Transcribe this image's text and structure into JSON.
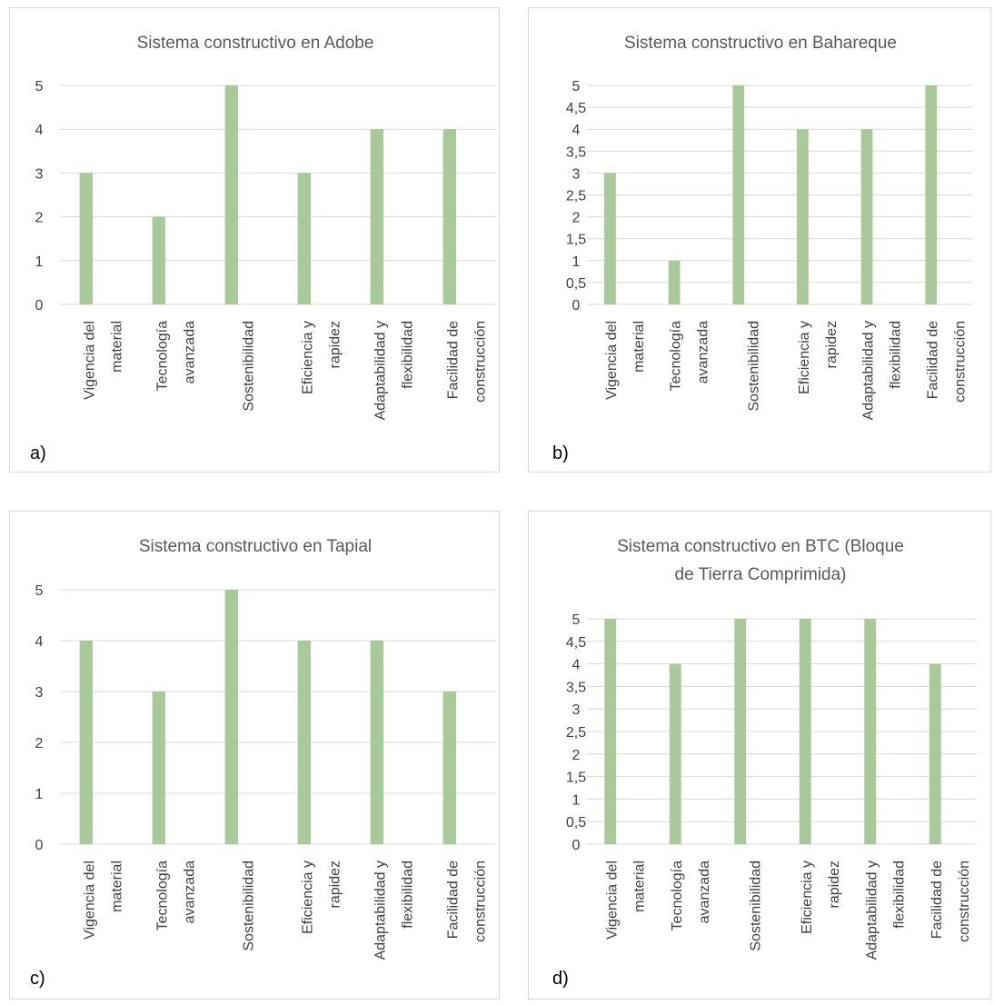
{
  "chart_data": [
    {
      "type": "bar",
      "label": "a)",
      "title": [
        "Sistema constructivo en Adobe"
      ],
      "categories": [
        [
          "Vigencia del",
          "material"
        ],
        [
          "Tecnología",
          "avanzada"
        ],
        [
          "Sostenibilidad"
        ],
        [
          "Eficiencia y",
          "rapidez"
        ],
        [
          "Adaptabilidad y",
          "flexibilidad"
        ],
        [
          "Facilidad de",
          "construcción"
        ]
      ],
      "values": [
        3,
        2,
        5,
        3,
        4,
        4
      ],
      "ylim": [
        0,
        5
      ],
      "yticks": [
        "0",
        "1",
        "2",
        "3",
        "4",
        "5"
      ],
      "grid": true,
      "color": "#a9c99b"
    },
    {
      "type": "bar",
      "label": "b)",
      "title": [
        "Sistema constructivo en Bahareque"
      ],
      "categories": [
        [
          "Vigencia del",
          "material"
        ],
        [
          "Tecnología",
          "avanzada"
        ],
        [
          "Sostenibilidad"
        ],
        [
          "Eficiencia y",
          "rapidez"
        ],
        [
          "Adaptabilidad y",
          "flexibilidad"
        ],
        [
          "Facilidad de",
          "construcción"
        ]
      ],
      "values": [
        3,
        1,
        5,
        4,
        4,
        5
      ],
      "ylim": [
        0,
        5
      ],
      "yticks": [
        "0",
        "0,5",
        "1",
        "1,5",
        "2",
        "2,5",
        "3",
        "3,5",
        "4",
        "4,5",
        "5"
      ],
      "grid": true,
      "color": "#a9c99b"
    },
    {
      "type": "bar",
      "label": "c)",
      "title": [
        "Sistema constructivo en Tapial"
      ],
      "categories": [
        [
          "Vigencia del",
          "material"
        ],
        [
          "Tecnología",
          "avanzada"
        ],
        [
          "Sostenibilidad"
        ],
        [
          "Eficiencia y",
          "rapidez"
        ],
        [
          "Adaptabilidad y",
          "flexibilidad"
        ],
        [
          "Facilidad de",
          "construcción"
        ]
      ],
      "values": [
        4,
        3,
        5,
        4,
        4,
        3
      ],
      "ylim": [
        0,
        5
      ],
      "yticks": [
        "0",
        "1",
        "2",
        "3",
        "4",
        "5"
      ],
      "grid": true,
      "color": "#a9c99b"
    },
    {
      "type": "bar",
      "label": "d)",
      "title": [
        "Sistema constructivo en BTC (Bloque",
        "de Tierra Comprimida)"
      ],
      "categories": [
        [
          "Vigencia del",
          "material"
        ],
        [
          "Tecnología",
          "avanzada"
        ],
        [
          "Sostenibilidad"
        ],
        [
          "Eficiencia y",
          "rapidez"
        ],
        [
          "Adaptabilidad y",
          "flexibilidad"
        ],
        [
          "Facilidad de",
          "construcción"
        ]
      ],
      "values": [
        5,
        4,
        5,
        5,
        5,
        4
      ],
      "ylim": [
        0,
        5
      ],
      "yticks": [
        "0",
        "0,5",
        "1",
        "1,5",
        "2",
        "2,5",
        "3",
        "3,5",
        "4",
        "4,5",
        "5"
      ],
      "grid": true,
      "color": "#a9c99b"
    }
  ]
}
